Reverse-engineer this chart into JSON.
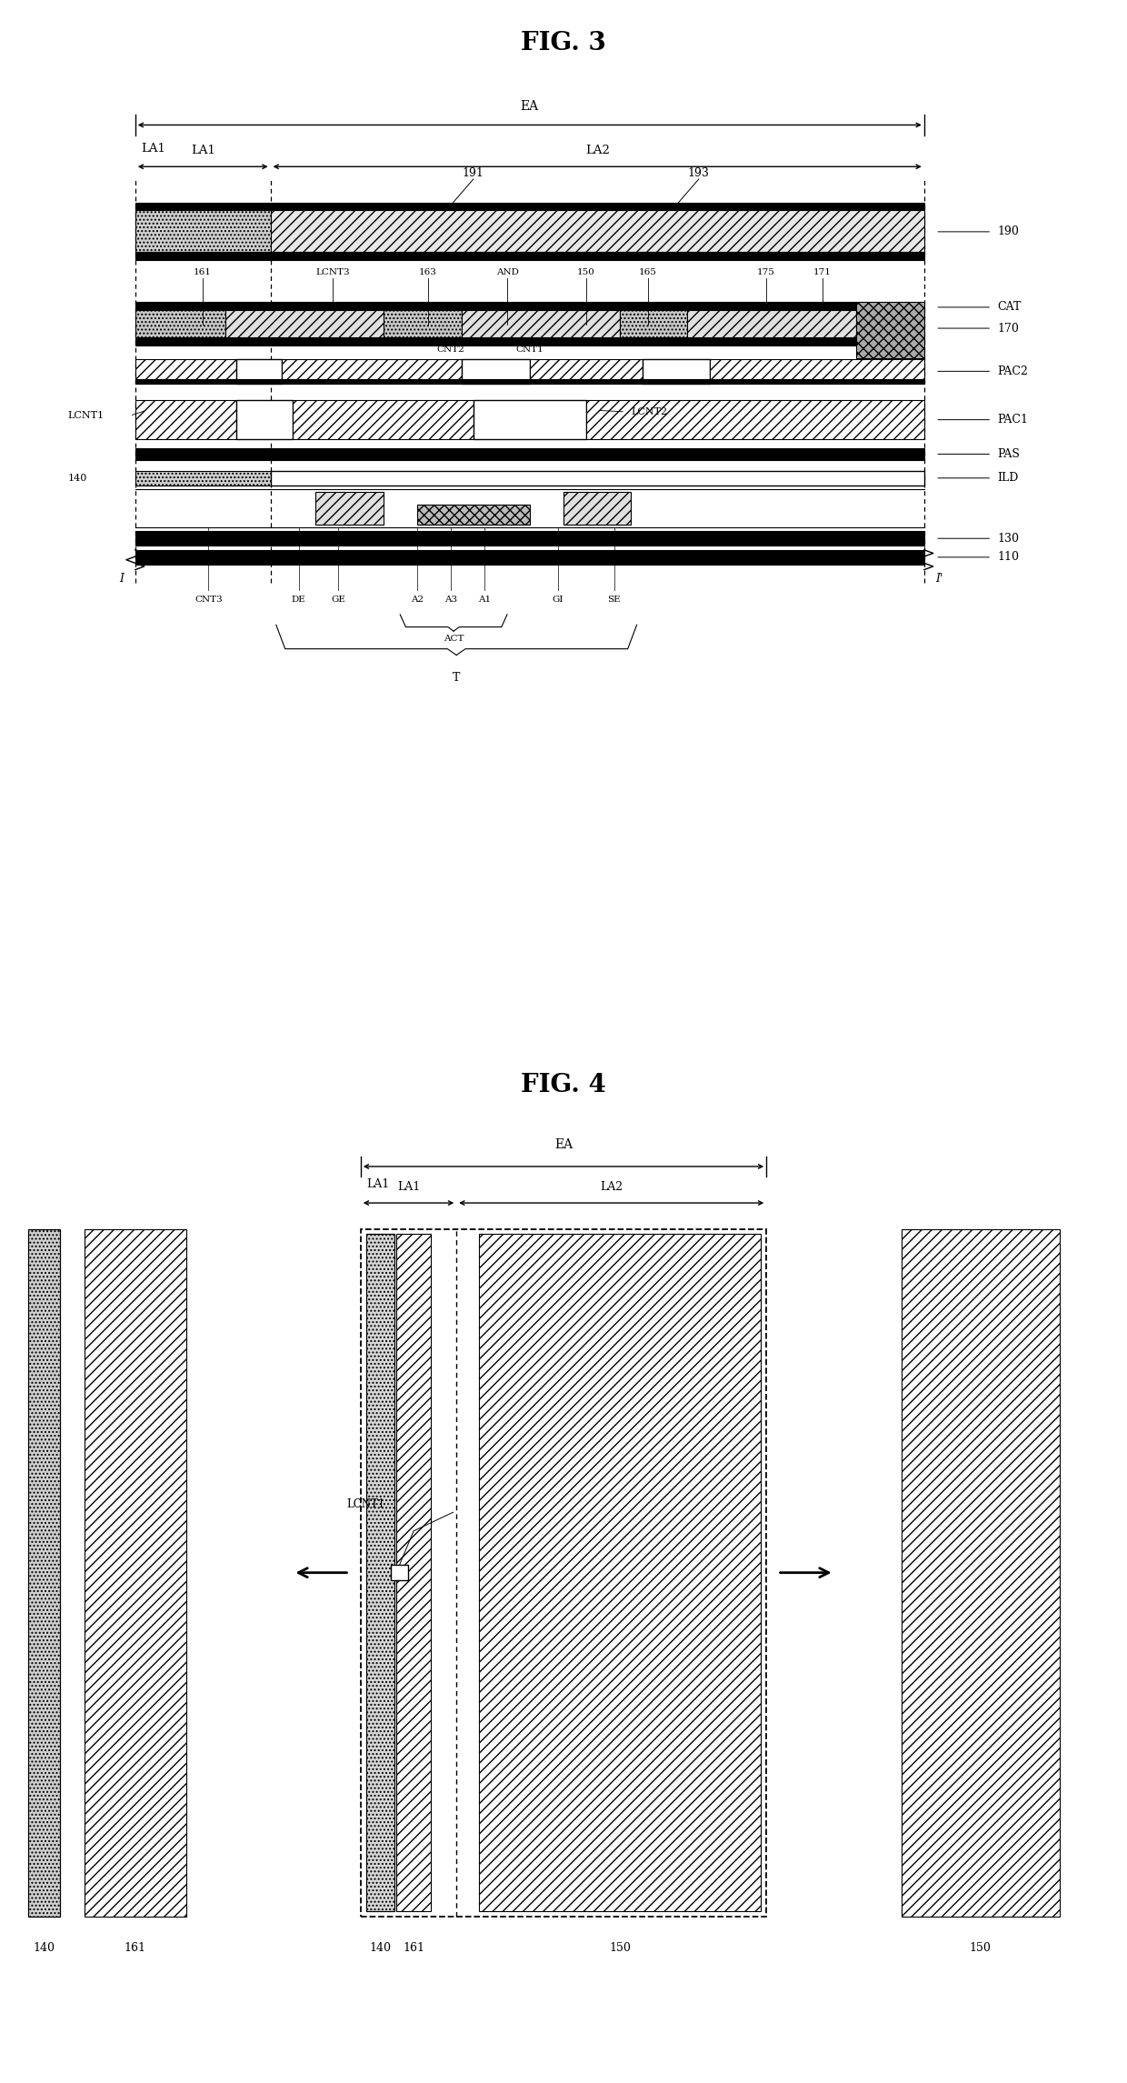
{
  "fig3_title": "FIG. 3",
  "fig4_title": "FIG. 4",
  "bg_color": "#ffffff",
  "fig3": {
    "ea_label": "EA",
    "la1_label": "LA1",
    "la2_label": "LA2",
    "label_191": "191",
    "label_193": "193",
    "label_190": "190",
    "label_lcnt3": "LCNT3",
    "label_161": "161",
    "label_163": "163",
    "label_and": "AND",
    "label_150": "150",
    "label_165": "165",
    "label_175": "175",
    "label_171": "171",
    "label_cat": "CAT",
    "label_170": "170",
    "label_pac2": "PAC2",
    "label_lcnt1": "LCNT1",
    "label_cnt2": "CNT2",
    "label_cnt1": "CNT1",
    "label_lcnt2": "LCNT2",
    "label_pac1": "PAC1",
    "label_pas": "PAS",
    "label_140": "140",
    "label_ild": "ILD",
    "label_130": "130",
    "label_110": "110",
    "label_I": "I",
    "label_Iprime": "I'",
    "label_cnt3": "CNT3",
    "label_de": "DE",
    "label_ge": "GE",
    "label_a2": "A2",
    "label_a3": "A3",
    "label_a1": "A1",
    "label_gi": "GI",
    "label_se": "SE",
    "label_act": "ACT",
    "label_T": "T"
  },
  "fig4": {
    "ea_label": "EA",
    "la1_label": "LA1",
    "la2_label": "LA2",
    "label_lcnt1": "LCNT1",
    "label_140_left": "140",
    "label_161_left": "161",
    "label_140_center": "140",
    "label_161_center": "161",
    "label_150_center": "150",
    "label_150_right": "150"
  }
}
